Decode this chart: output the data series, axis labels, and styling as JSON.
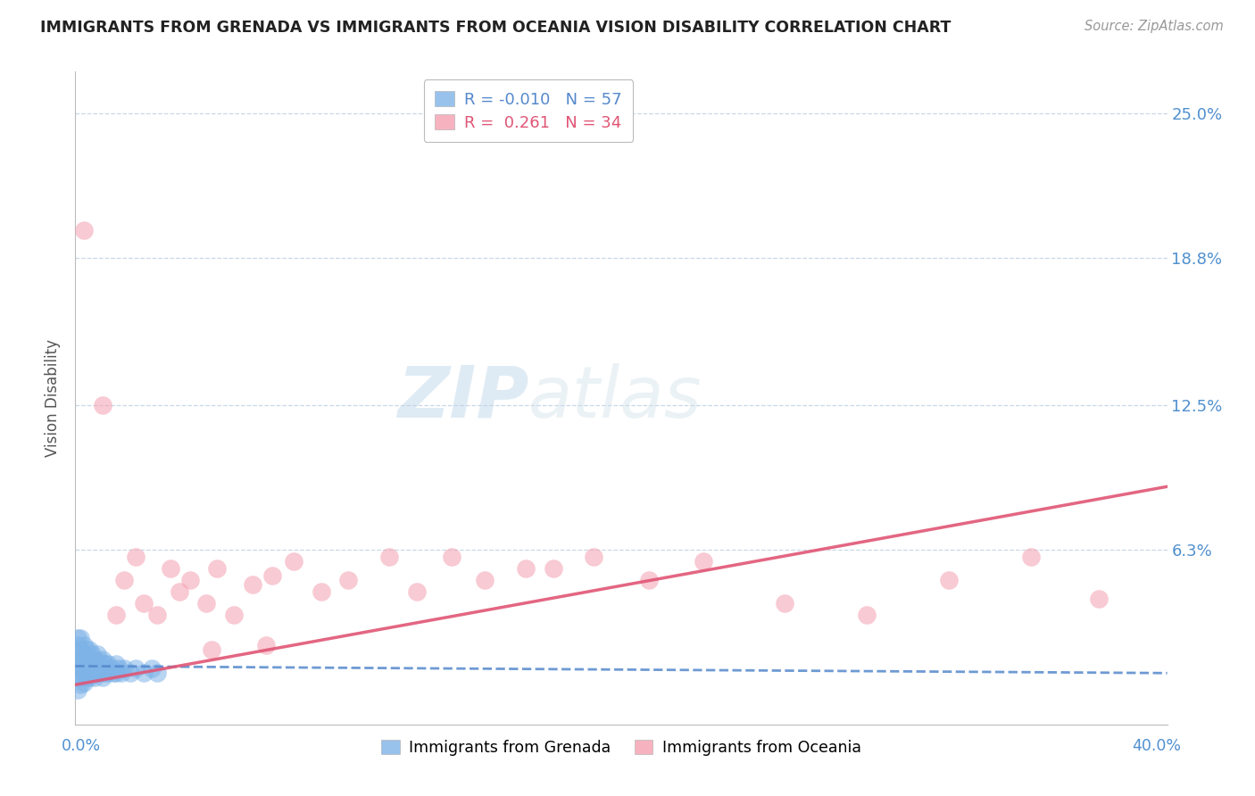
{
  "title": "IMMIGRANTS FROM GRENADA VS IMMIGRANTS FROM OCEANIA VISION DISABILITY CORRELATION CHART",
  "source": "Source: ZipAtlas.com",
  "ylabel": "Vision Disability",
  "ytick_vals": [
    0.063,
    0.125,
    0.188,
    0.25
  ],
  "ytick_labels": [
    "6.3%",
    "12.5%",
    "18.8%",
    "25.0%"
  ],
  "xlim": [
    0.0,
    0.4
  ],
  "ylim": [
    -0.012,
    0.268
  ],
  "grenada_R": -0.01,
  "grenada_N": 57,
  "oceania_R": 0.261,
  "oceania_N": 34,
  "grenada_color": "#7eb3e8",
  "oceania_color": "#f4a0b0",
  "grenada_line_color": "#5588cc",
  "oceania_line_color": "#e05575",
  "watermark_zip": "ZIP",
  "watermark_atlas": "atlas",
  "background_color": "#ffffff",
  "grenada_x": [
    0.001,
    0.001,
    0.001,
    0.001,
    0.001,
    0.002,
    0.002,
    0.002,
    0.002,
    0.003,
    0.003,
    0.003,
    0.003,
    0.004,
    0.004,
    0.004,
    0.005,
    0.005,
    0.005,
    0.005,
    0.006,
    0.006,
    0.006,
    0.007,
    0.007,
    0.007,
    0.008,
    0.008,
    0.008,
    0.009,
    0.009,
    0.01,
    0.01,
    0.01,
    0.011,
    0.011,
    0.012,
    0.012,
    0.013,
    0.014,
    0.015,
    0.015,
    0.016,
    0.017,
    0.018,
    0.02,
    0.022,
    0.025,
    0.028,
    0.03,
    0.002,
    0.003,
    0.004,
    0.005,
    0.001,
    0.001,
    0.002
  ],
  "grenada_y": [
    0.01,
    0.012,
    0.015,
    0.018,
    0.022,
    0.008,
    0.012,
    0.015,
    0.02,
    0.01,
    0.014,
    0.018,
    0.022,
    0.01,
    0.015,
    0.02,
    0.008,
    0.012,
    0.016,
    0.02,
    0.01,
    0.014,
    0.018,
    0.008,
    0.012,
    0.016,
    0.01,
    0.014,
    0.018,
    0.01,
    0.015,
    0.008,
    0.012,
    0.016,
    0.01,
    0.014,
    0.01,
    0.014,
    0.012,
    0.01,
    0.01,
    0.014,
    0.012,
    0.01,
    0.012,
    0.01,
    0.012,
    0.01,
    0.012,
    0.01,
    0.005,
    0.006,
    0.008,
    0.01,
    0.003,
    0.025,
    0.025
  ],
  "oceania_x": [
    0.003,
    0.01,
    0.015,
    0.018,
    0.022,
    0.025,
    0.03,
    0.035,
    0.038,
    0.042,
    0.048,
    0.052,
    0.058,
    0.065,
    0.072,
    0.08,
    0.09,
    0.1,
    0.115,
    0.125,
    0.138,
    0.15,
    0.165,
    0.175,
    0.19,
    0.21,
    0.23,
    0.26,
    0.29,
    0.32,
    0.35,
    0.375,
    0.05,
    0.07
  ],
  "oceania_y": [
    0.2,
    0.125,
    0.035,
    0.05,
    0.06,
    0.04,
    0.035,
    0.055,
    0.045,
    0.05,
    0.04,
    0.055,
    0.035,
    0.048,
    0.052,
    0.058,
    0.045,
    0.05,
    0.06,
    0.045,
    0.06,
    0.05,
    0.055,
    0.055,
    0.06,
    0.05,
    0.058,
    0.04,
    0.035,
    0.05,
    0.06,
    0.042,
    0.02,
    0.022
  ]
}
